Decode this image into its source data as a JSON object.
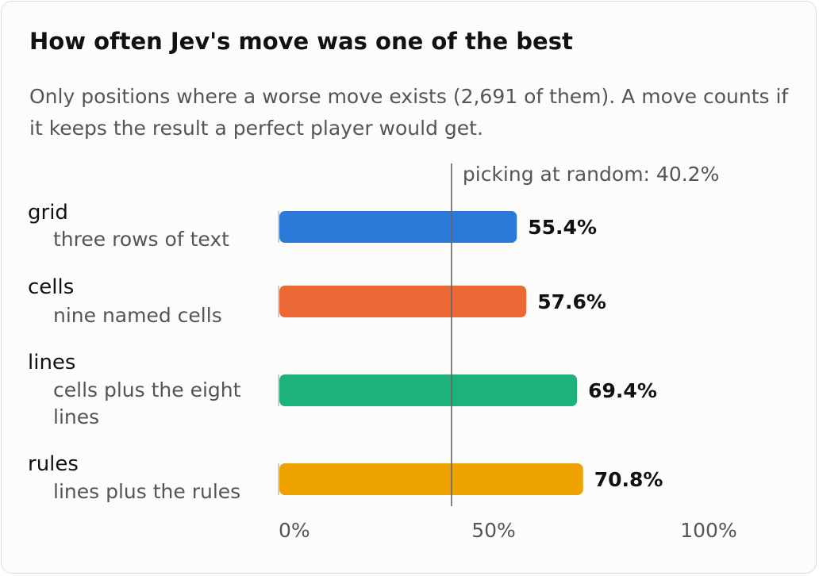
{
  "chart_data": {
    "type": "bar",
    "orientation": "horizontal",
    "title": "How often Jev's move was one of the best",
    "subtitle": "Only positions where a worse move exists (2,691 of them). A move counts if it keeps the result a perfect player would get.",
    "categories": [
      {
        "name": "grid",
        "description": [
          "three rows of text"
        ],
        "value": 55.4,
        "value_label": "55.4%",
        "color": "#2b79d8"
      },
      {
        "name": "cells",
        "description": [
          "nine named cells"
        ],
        "value": 57.6,
        "value_label": "57.6%",
        "color": "#ec6834"
      },
      {
        "name": "lines",
        "description": [
          "cells plus the eight",
          "lines"
        ],
        "value": 69.4,
        "value_label": "69.4%",
        "color": "#1db27b"
      },
      {
        "name": "rules",
        "description": [
          "lines plus the rules"
        ],
        "value": 70.8,
        "value_label": "70.8%",
        "color": "#eea200"
      }
    ],
    "reference_line": {
      "value": 40.2,
      "label": "picking at random: 40.2%"
    },
    "xlim": [
      0,
      100
    ],
    "ticks": [
      {
        "value": 0,
        "label": "0%"
      },
      {
        "value": 50,
        "label": "50%"
      },
      {
        "value": 100,
        "label": "100%"
      }
    ],
    "grid": false,
    "legend": "none"
  }
}
